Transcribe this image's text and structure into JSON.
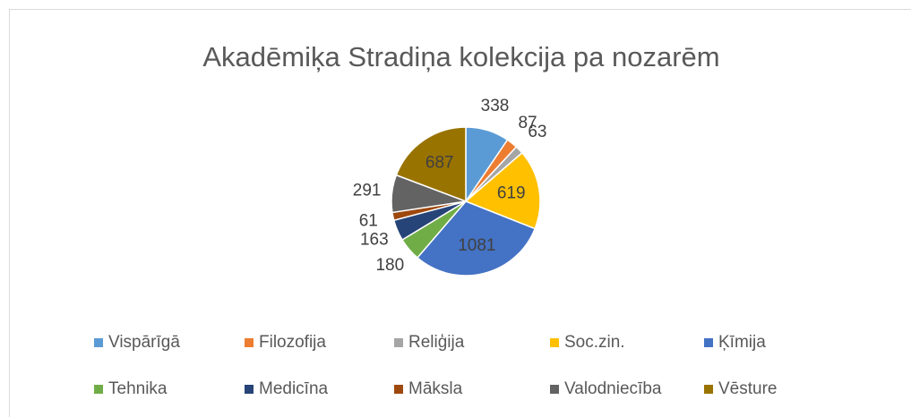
{
  "chart_data": {
    "type": "pie",
    "title": "Akadēmiķa Stradiņa kolekcija pa nozarēm",
    "categories": [
      "Vispārīgā",
      "Filozofija",
      "Reliģija",
      "Soc.zin.",
      "Ķīmija",
      "Tehnika",
      "Medicīna",
      "Māksla",
      "Valodniecība",
      "Vēsture"
    ],
    "values": [
      338,
      87,
      63,
      619,
      1081,
      180,
      163,
      61,
      291,
      687
    ],
    "colors": [
      "#5b9bd5",
      "#ed7d31",
      "#a5a5a5",
      "#ffc000",
      "#4472c4",
      "#70ad47",
      "#264478",
      "#9e480e",
      "#636363",
      "#997300"
    ],
    "legend": "bottom"
  }
}
